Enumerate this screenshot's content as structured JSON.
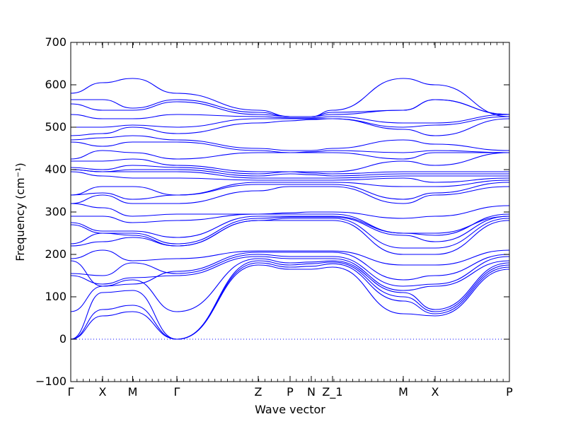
{
  "chart_data": {
    "type": "line",
    "title": "",
    "xlabel": "Wave vector",
    "ylabel": "Frequency (cm⁻¹)",
    "ylim": [
      -100,
      700
    ],
    "yticks": [
      -100,
      0,
      100,
      200,
      300,
      400,
      500,
      600,
      700
    ],
    "xlim": [
      0,
      12.4
    ],
    "xticks": [
      {
        "x": 0.0,
        "label": "Γ"
      },
      {
        "x": 0.9,
        "label": "X"
      },
      {
        "x": 1.75,
        "label": "M"
      },
      {
        "x": 3.0,
        "label": "Γ"
      },
      {
        "x": 5.3,
        "label": "Z"
      },
      {
        "x": 6.2,
        "label": "P"
      },
      {
        "x": 6.8,
        "label": "N"
      },
      {
        "x": 7.4,
        "label": "Z_1"
      },
      {
        "x": 9.4,
        "label": "M"
      },
      {
        "x": 10.3,
        "label": "X"
      },
      {
        "x": 12.4,
        "label": "P"
      }
    ],
    "zero_line": {
      "y": 0,
      "style": "dotted"
    },
    "grid": false,
    "line_color": "#0000ff",
    "band_points_x": [
      0.0,
      0.9,
      1.75,
      3.0,
      5.3,
      6.2,
      6.8,
      7.4,
      9.4,
      10.3,
      12.4
    ],
    "series": [
      {
        "values": [
          0,
          55,
          65,
          0,
          175,
          165,
          165,
          170,
          60,
          55,
          165
        ]
      },
      {
        "values": [
          0,
          70,
          80,
          0,
          180,
          170,
          172,
          178,
          90,
          60,
          170
        ]
      },
      {
        "values": [
          0,
          110,
          115,
          0,
          185,
          175,
          178,
          182,
          100,
          65,
          175
        ]
      },
      {
        "values": [
          65,
          125,
          140,
          65,
          190,
          180,
          182,
          185,
          110,
          70,
          180
        ]
      },
      {
        "values": [
          150,
          130,
          145,
          150,
          195,
          190,
          190,
          190,
          115,
          125,
          185
        ]
      },
      {
        "values": [
          155,
          150,
          180,
          155,
          200,
          195,
          195,
          195,
          125,
          130,
          195
        ]
      },
      {
        "values": [
          185,
          125,
          130,
          160,
          205,
          205,
          205,
          205,
          140,
          150,
          200
        ]
      },
      {
        "values": [
          190,
          210,
          185,
          190,
          208,
          208,
          208,
          208,
          175,
          175,
          210
        ]
      },
      {
        "values": [
          220,
          230,
          240,
          220,
          280,
          280,
          280,
          280,
          200,
          200,
          280
        ]
      },
      {
        "values": [
          225,
          250,
          245,
          220,
          280,
          285,
          285,
          285,
          215,
          215,
          285
        ]
      },
      {
        "values": [
          270,
          250,
          250,
          225,
          285,
          288,
          288,
          288,
          245,
          230,
          290
        ]
      },
      {
        "values": [
          275,
          255,
          255,
          240,
          290,
          290,
          290,
          290,
          250,
          245,
          295
        ]
      },
      {
        "values": [
          290,
          290,
          275,
          280,
          295,
          295,
          295,
          295,
          250,
          250,
          290
        ]
      },
      {
        "values": [
          320,
          310,
          290,
          295,
          295,
          298,
          300,
          300,
          285,
          290,
          315
        ]
      },
      {
        "values": [
          320,
          340,
          320,
          320,
          350,
          360,
          360,
          360,
          320,
          340,
          360
        ]
      },
      {
        "values": [
          340,
          345,
          330,
          340,
          365,
          365,
          365,
          365,
          330,
          345,
          370
        ]
      },
      {
        "values": [
          340,
          360,
          360,
          340,
          370,
          370,
          370,
          370,
          360,
          360,
          375
        ]
      },
      {
        "values": [
          395,
          385,
          380,
          380,
          375,
          375,
          375,
          375,
          380,
          370,
          380
        ]
      },
      {
        "values": [
          400,
          395,
          395,
          395,
          380,
          380,
          380,
          380,
          385,
          385,
          385
        ]
      },
      {
        "values": [
          400,
          395,
          400,
          400,
          385,
          390,
          388,
          385,
          390,
          390,
          390
        ]
      },
      {
        "values": [
          405,
          400,
          410,
          405,
          390,
          395,
          392,
          390,
          395,
          395,
          395
        ]
      },
      {
        "values": [
          420,
          420,
          425,
          410,
          395,
          395,
          395,
          395,
          420,
          410,
          440
        ]
      },
      {
        "values": [
          425,
          445,
          440,
          425,
          440,
          440,
          440,
          440,
          425,
          440,
          440
        ]
      },
      {
        "values": [
          465,
          455,
          465,
          465,
          445,
          440,
          442,
          445,
          440,
          445,
          440
        ]
      },
      {
        "values": [
          470,
          475,
          480,
          470,
          450,
          445,
          445,
          450,
          470,
          460,
          445
        ]
      },
      {
        "values": [
          480,
          485,
          500,
          485,
          510,
          515,
          518,
          520,
          495,
          480,
          520
        ]
      },
      {
        "values": [
          500,
          500,
          505,
          500,
          520,
          520,
          520,
          520,
          500,
          505,
          525
        ]
      },
      {
        "values": [
          530,
          520,
          520,
          530,
          525,
          522,
          522,
          525,
          510,
          510,
          530
        ]
      },
      {
        "values": [
          555,
          540,
          540,
          560,
          530,
          525,
          525,
          530,
          540,
          565,
          530
        ]
      },
      {
        "values": [
          565,
          565,
          545,
          565,
          535,
          525,
          525,
          535,
          540,
          565,
          530
        ]
      },
      {
        "values": [
          580,
          605,
          615,
          580,
          540,
          525,
          525,
          540,
          615,
          600,
          525
        ]
      }
    ]
  }
}
